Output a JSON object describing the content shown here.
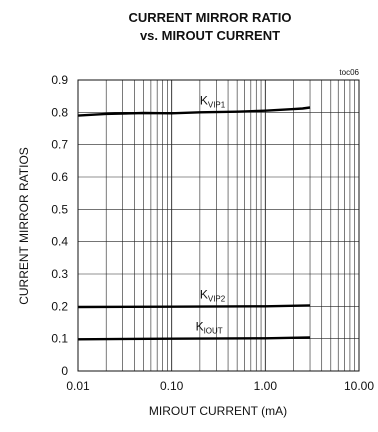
{
  "chart_data": {
    "type": "line",
    "title_line1": "CURRENT MIRROR RATIO",
    "title_line2": "vs. MIROUT CURRENT",
    "corner_tag": "toc06",
    "xlabel": "MIROUT CURRENT (mA)",
    "ylabel": "CURRENT MIRROR RATIOS",
    "x_scale": "log",
    "xlim": [
      0.01,
      10
    ],
    "ylim": [
      0,
      0.9
    ],
    "grid": true,
    "x_ticks": [
      {
        "value": 0.01,
        "label": "0.01"
      },
      {
        "value": 0.1,
        "label": "0.10"
      },
      {
        "value": 1,
        "label": "1.00"
      },
      {
        "value": 10,
        "label": "10.00"
      }
    ],
    "y_ticks": [
      {
        "value": 0,
        "label": "0"
      },
      {
        "value": 0.1,
        "label": "0.1"
      },
      {
        "value": 0.2,
        "label": "0.2"
      },
      {
        "value": 0.3,
        "label": "0.3"
      },
      {
        "value": 0.4,
        "label": "0.4"
      },
      {
        "value": 0.5,
        "label": "0.5"
      },
      {
        "value": 0.6,
        "label": "0.6"
      },
      {
        "value": 0.7,
        "label": "0.7"
      },
      {
        "value": 0.8,
        "label": "0.8"
      },
      {
        "value": 0.9,
        "label": "0.9"
      }
    ],
    "series": [
      {
        "label_main": "K",
        "label_sub": "VIP1",
        "label_at": {
          "x": 0.2,
          "y": 0.825
        },
        "x": [
          0.01,
          0.02,
          0.05,
          0.1,
          0.2,
          0.5,
          1.0,
          2.0,
          2.5,
          3.0
        ],
        "y": [
          0.79,
          0.795,
          0.798,
          0.797,
          0.8,
          0.802,
          0.805,
          0.81,
          0.812,
          0.815
        ]
      },
      {
        "label_main": "K",
        "label_sub": "VIP2",
        "label_at": {
          "x": 0.2,
          "y": 0.225
        },
        "x": [
          0.01,
          0.1,
          1.0,
          3.0
        ],
        "y": [
          0.198,
          0.199,
          0.2,
          0.203
        ]
      },
      {
        "label_main": "K",
        "label_sub": "IOUT",
        "label_at": {
          "x": 0.18,
          "y": 0.125
        },
        "x": [
          0.01,
          0.1,
          1.0,
          3.0
        ],
        "y": [
          0.098,
          0.1,
          0.101,
          0.104
        ]
      }
    ]
  }
}
